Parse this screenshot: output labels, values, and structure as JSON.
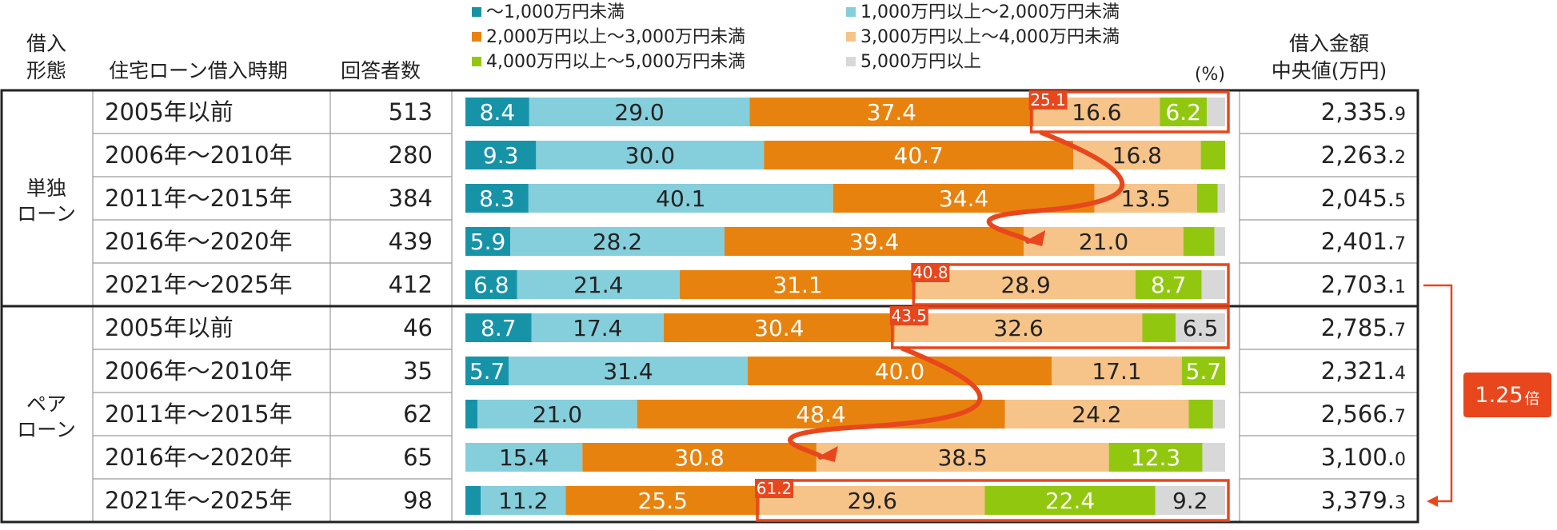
{
  "header": {
    "type_l1": "借入",
    "type_l2": "形態",
    "period": "住宅ローン借入時期",
    "respondents": "回答者数",
    "amount_l1": "借入金額",
    "amount_l2": "中央値(万円)",
    "pct_unit": "(%)"
  },
  "chart_data": {
    "type": "bar",
    "orientation": "horizontal-stacked-100",
    "unit": "%",
    "legend": [
      {
        "name": "～1,000万円未満",
        "color": "#1793a8"
      },
      {
        "name": "1,000万円以上～2,000万円未満",
        "color": "#85cedb"
      },
      {
        "name": "2,000万円以上～3,000万円未満",
        "color": "#e8820e"
      },
      {
        "name": "3,000万円以上～4,000万円未満",
        "color": "#f6c389"
      },
      {
        "name": "4,000万円以上～5,000万円未満",
        "color": "#92c710"
      },
      {
        "name": "5,000万円以上",
        "color": "#d8d8d8"
      }
    ],
    "groups": [
      {
        "label_l1": "単独",
        "label_l2": "ローン",
        "rows": [
          {
            "period": "2005年以前",
            "n": "513",
            "values": [
              8.4,
              29.0,
              37.4,
              16.6,
              6.2,
              2.4
            ],
            "labels": [
              "8.4",
              "29.0",
              "37.4",
              "16.6",
              "6.2",
              ""
            ],
            "label_colors": [
              "#fff",
              "#222",
              "#fff",
              "#222",
              "#fff",
              "#222"
            ],
            "median_main": "2,335.",
            "median_dec": "9",
            "highlight": true,
            "highlight_value": "25.1"
          },
          {
            "period": "2006年～2010年",
            "n": "280",
            "values": [
              9.3,
              30.0,
              40.7,
              16.8,
              3.2,
              0.0
            ],
            "labels": [
              "9.3",
              "30.0",
              "40.7",
              "16.8",
              "",
              ""
            ],
            "label_colors": [
              "#fff",
              "#222",
              "#fff",
              "#222",
              "#fff",
              "#222"
            ],
            "median_main": "2,263.",
            "median_dec": "2",
            "highlight": false
          },
          {
            "period": "2011年～2015年",
            "n": "384",
            "values": [
              8.3,
              40.1,
              34.4,
              13.5,
              2.7,
              1.0
            ],
            "labels": [
              "8.3",
              "40.1",
              "34.4",
              "13.5",
              "",
              ""
            ],
            "label_colors": [
              "#fff",
              "#222",
              "#fff",
              "#222",
              "#fff",
              "#222"
            ],
            "median_main": "2,045.",
            "median_dec": "5",
            "highlight": false
          },
          {
            "period": "2016年～2020年",
            "n": "439",
            "values": [
              5.9,
              28.2,
              39.4,
              21.0,
              4.1,
              1.4
            ],
            "labels": [
              "5.9",
              "28.2",
              "39.4",
              "21.0",
              "",
              ""
            ],
            "label_colors": [
              "#fff",
              "#222",
              "#fff",
              "#222",
              "#fff",
              "#222"
            ],
            "median_main": "2,401.",
            "median_dec": "7",
            "highlight": false
          },
          {
            "period": "2021年～2025年",
            "n": "412",
            "values": [
              6.8,
              21.4,
              31.1,
              28.9,
              8.7,
              3.1
            ],
            "labels": [
              "6.8",
              "21.4",
              "31.1",
              "28.9",
              "8.7",
              ""
            ],
            "label_colors": [
              "#fff",
              "#222",
              "#fff",
              "#222",
              "#fff",
              "#222"
            ],
            "median_main": "2,703.",
            "median_dec": "1",
            "highlight": true,
            "highlight_value": "40.8"
          }
        ]
      },
      {
        "label_l1": "ペア",
        "label_l2": "ローン",
        "rows": [
          {
            "period": "2005年以前",
            "n": "46",
            "values": [
              8.7,
              17.4,
              30.4,
              32.6,
              4.4,
              6.5
            ],
            "labels": [
              "8.7",
              "17.4",
              "30.4",
              "32.6",
              "",
              "6.5"
            ],
            "label_colors": [
              "#fff",
              "#222",
              "#fff",
              "#222",
              "#fff",
              "#222"
            ],
            "median_main": "2,785.",
            "median_dec": "7",
            "highlight": true,
            "highlight_value": "43.5"
          },
          {
            "period": "2006年～2010年",
            "n": "35",
            "values": [
              5.7,
              31.4,
              40.0,
              17.1,
              5.7,
              0.0
            ],
            "labels": [
              "5.7",
              "31.4",
              "40.0",
              "17.1",
              "5.7",
              ""
            ],
            "label_colors": [
              "#fff",
              "#222",
              "#fff",
              "#222",
              "#fff",
              "#222"
            ],
            "median_main": "2,321.",
            "median_dec": "4",
            "highlight": false
          },
          {
            "period": "2011年～2015年",
            "n": "62",
            "values": [
              1.6,
              21.0,
              48.4,
              24.2,
              3.2,
              1.6
            ],
            "labels": [
              "",
              "21.0",
              "48.4",
              "24.2",
              "",
              ""
            ],
            "label_colors": [
              "#fff",
              "#222",
              "#fff",
              "#222",
              "#fff",
              "#222"
            ],
            "median_main": "2,566.",
            "median_dec": "7",
            "highlight": false
          },
          {
            "period": "2016年～2020年",
            "n": "65",
            "values": [
              0.0,
              15.4,
              30.8,
              38.5,
              12.3,
              3.0
            ],
            "labels": [
              "",
              "15.4",
              "30.8",
              "38.5",
              "12.3",
              ""
            ],
            "label_colors": [
              "#fff",
              "#222",
              "#fff",
              "#222",
              "#fff",
              "#222"
            ],
            "median_main": "3,100.",
            "median_dec": "0",
            "highlight": false
          },
          {
            "period": "2021年～2025年",
            "n": "98",
            "values": [
              2.0,
              11.2,
              25.5,
              29.6,
              22.4,
              9.2
            ],
            "labels": [
              "",
              "11.2",
              "25.5",
              "29.6",
              "22.4",
              "9.2"
            ],
            "label_colors": [
              "#fff",
              "#222",
              "#fff",
              "#222",
              "#fff",
              "#222"
            ],
            "median_main": "3,379.",
            "median_dec": "3",
            "highlight": true,
            "highlight_value": "61.2"
          }
        ]
      }
    ],
    "annotation": {
      "ratio_main": "1.25",
      "ratio_suffix": "倍"
    }
  },
  "colors": {
    "accent": "#e8471d",
    "border": "#222222",
    "grid": "#9a9a9a"
  }
}
